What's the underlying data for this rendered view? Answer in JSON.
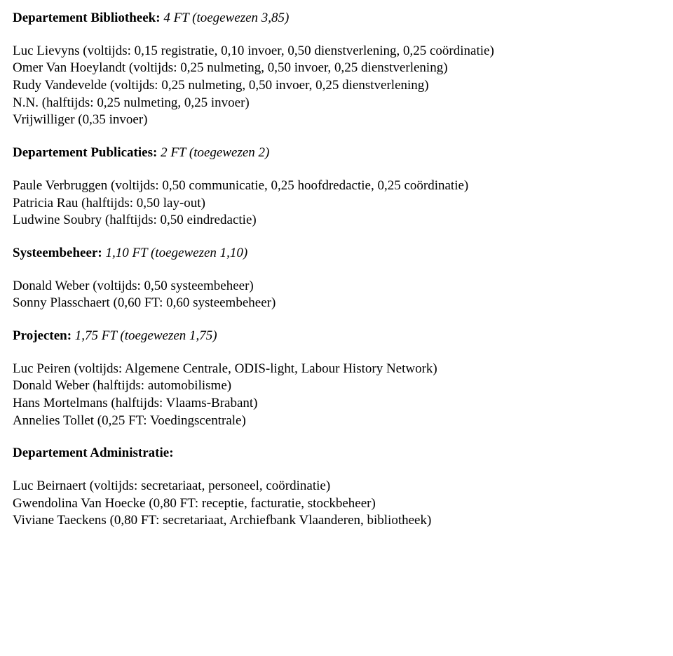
{
  "sections": [
    {
      "heading_bold": "Departement Bibliotheek:",
      "heading_rest_italic": " 4 FT (toegewezen 3,85)",
      "lines": [
        "Luc Lievyns (voltijds: 0,15 registratie, 0,10 invoer, 0,50 dienstverlening, 0,25 coördinatie)",
        "Omer Van Hoeylandt (voltijds: 0,25 nulmeting, 0,50 invoer, 0,25 dienstverlening)",
        "Rudy Vandevelde (voltijds: 0,25 nulmeting, 0,50 invoer, 0,25 dienstverlening)",
        "N.N. (halftijds: 0,25 nulmeting, 0,25 invoer)",
        "Vrijwilliger (0,35 invoer)"
      ]
    },
    {
      "heading_bold": "Departement Publicaties:",
      "heading_rest_italic": " 2 FT (toegewezen 2)",
      "lines": [
        "Paule Verbruggen (voltijds: 0,50 communicatie, 0,25 hoofdredactie, 0,25 coördinatie)",
        "Patricia Rau (halftijds: 0,50 lay-out)",
        "Ludwine Soubry (halftijds: 0,50 eindredactie)"
      ]
    },
    {
      "heading_bold": "Systeembeheer:",
      "heading_rest_italic": " 1,10 FT (toegewezen 1,10)",
      "lines": [
        "Donald Weber (voltijds: 0,50 systeembeheer)",
        "Sonny Plasschaert (0,60 FT: 0,60 systeembeheer)"
      ]
    },
    {
      "heading_bold": "Projecten:",
      "heading_rest_italic": " 1,75 FT (toegewezen 1,75)",
      "lines": [
        "Luc Peiren (voltijds: Algemene Centrale, ODIS-light, Labour History Network)",
        "Donald Weber (halftijds: automobilisme)",
        "Hans Mortelmans (halftijds: Vlaams-Brabant)",
        "Annelies Tollet (0,25 FT: Voedingscentrale)"
      ]
    },
    {
      "heading_bold": "Departement Administratie:",
      "heading_rest_italic": "",
      "lines": [
        "Luc Beirnaert (voltijds: secretariaat, personeel, coördinatie)",
        "Gwendolina Van Hoecke (0,80 FT: receptie, facturatie, stockbeheer)",
        "Viviane Taeckens (0,80 FT: secretariaat, Archiefbank Vlaanderen, bibliotheek)"
      ]
    }
  ]
}
